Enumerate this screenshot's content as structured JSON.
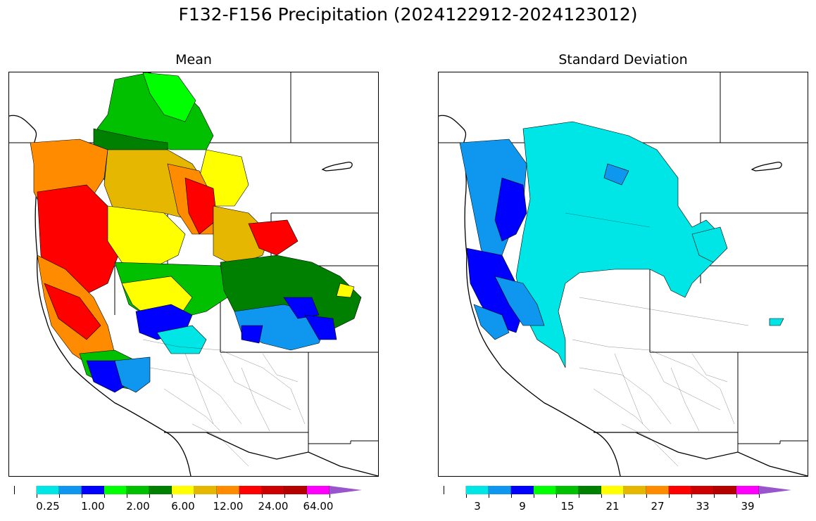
{
  "title": "F132-F156 Precipitation (2024122912-2024123012)",
  "panels": {
    "mean": {
      "title": "Mean"
    },
    "std": {
      "title": "Standard Deviation"
    }
  },
  "colorbars": {
    "mean": {
      "colors": [
        "#ffffff",
        "#00e5e5",
        "#0f96ee",
        "#0000ff",
        "#00ff00",
        "#00c000",
        "#008000",
        "#ffff00",
        "#e5b700",
        "#ff8c00",
        "#ff0000",
        "#cc0000",
        "#b50000",
        "#ff00ff",
        "#9955cc"
      ],
      "labels": [
        "0.25",
        "1.00",
        "2.00",
        "6.00",
        "12.00",
        "24.00",
        "64.00"
      ]
    },
    "std": {
      "colors": [
        "#ffffff",
        "#00e5e5",
        "#0f96ee",
        "#0000ff",
        "#00ff00",
        "#00c000",
        "#008000",
        "#ffff00",
        "#e5b700",
        "#ff8c00",
        "#ff0000",
        "#cc0000",
        "#b50000",
        "#ff00ff",
        "#9955cc"
      ],
      "labels": [
        "3",
        "9",
        "15",
        "21",
        "27",
        "33",
        "39"
      ]
    }
  }
}
